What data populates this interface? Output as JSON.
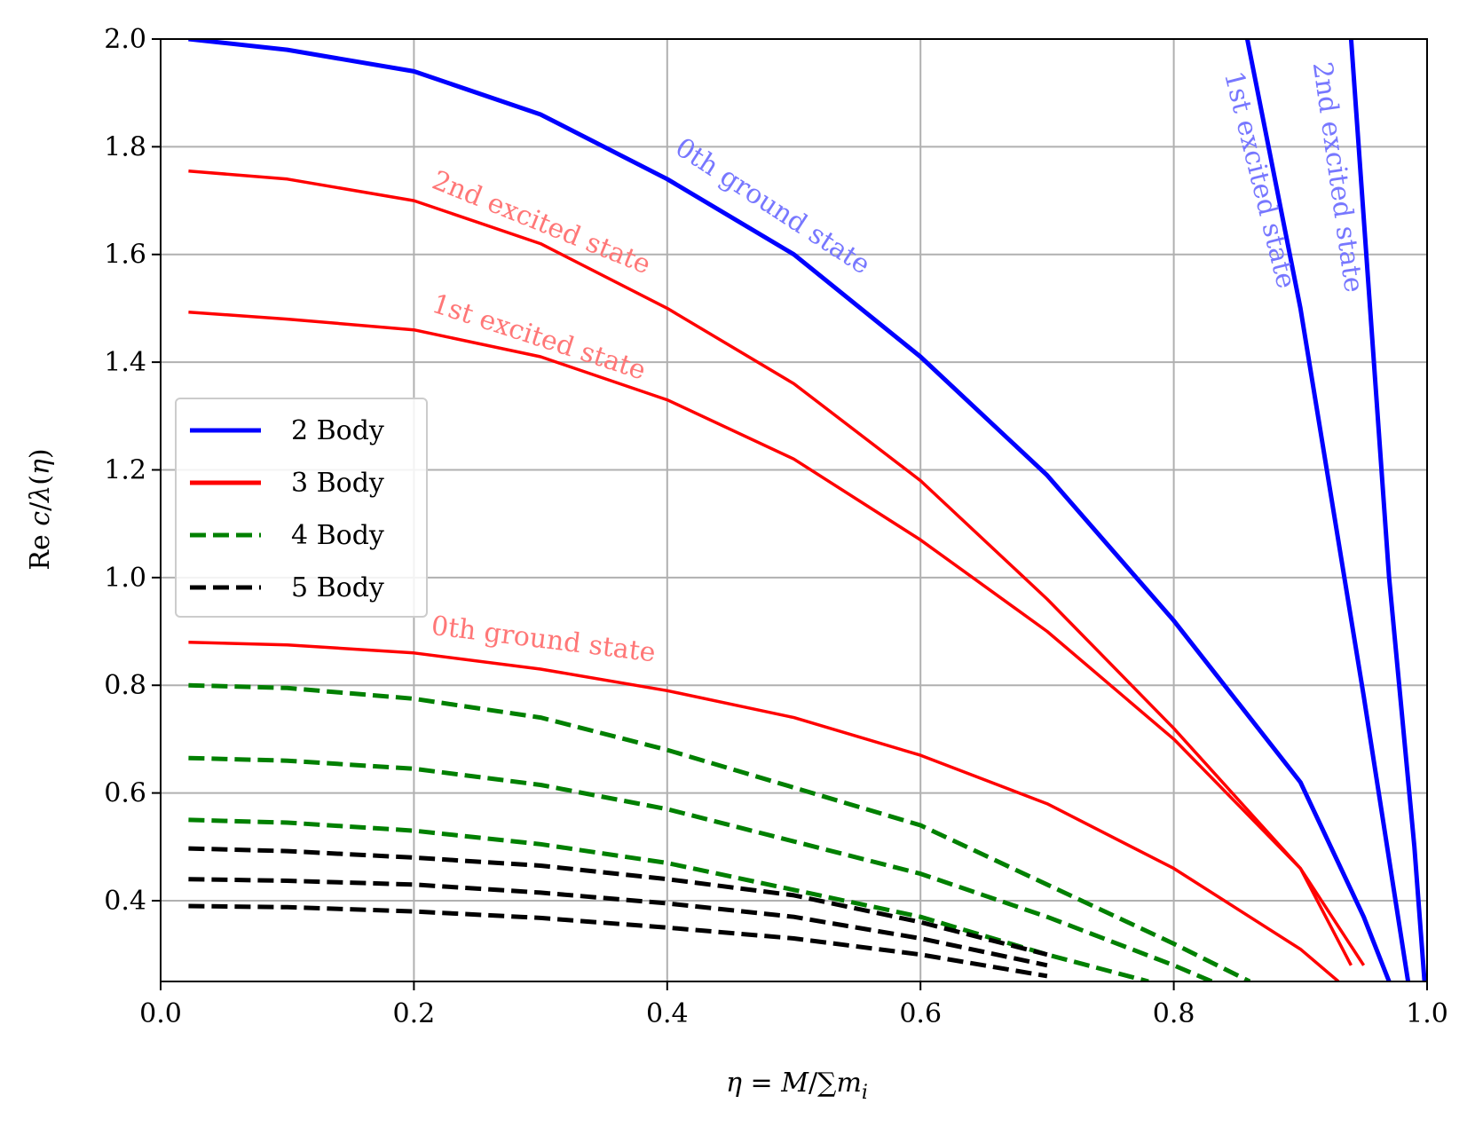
{
  "chart_data": {
    "type": "line",
    "title": "",
    "xlabel": "η = M/∑m_i",
    "ylabel": "Re c/λ(η)",
    "xlim": [
      0.0,
      1.0
    ],
    "ylim": [
      0.25,
      2.0
    ],
    "xticks": [
      "0.0",
      "0.2",
      "0.4",
      "0.6",
      "0.8",
      "1.0"
    ],
    "yticks": [
      "0.4",
      "0.6",
      "0.8",
      "1.0",
      "1.2",
      "1.4",
      "1.6",
      "1.8",
      "2.0"
    ],
    "grid": true,
    "legend_position": "center-left",
    "legend": [
      {
        "label": "2 Body",
        "color": "#0000ff",
        "style": "solid"
      },
      {
        "label": "3 Body",
        "color": "#ff0000",
        "style": "solid"
      },
      {
        "label": "4 Body",
        "color": "#008000",
        "style": "dashed"
      },
      {
        "label": "5 Body",
        "color": "#000000",
        "style": "dashed"
      }
    ],
    "series": [
      {
        "group": "2 Body",
        "color": "#0000ff",
        "style": "solid",
        "width": 5,
        "x": [
          0.022,
          0.1,
          0.2,
          0.3,
          0.4,
          0.5,
          0.6,
          0.7,
          0.8,
          0.9,
          0.95,
          0.97
        ],
        "y": [
          2.0,
          1.98,
          1.94,
          1.86,
          1.74,
          1.6,
          1.41,
          1.19,
          0.92,
          0.62,
          0.37,
          0.25
        ]
      },
      {
        "group": "2 Body",
        "color": "#0000ff",
        "style": "solid",
        "width": 5,
        "x": [
          0.858,
          0.9,
          0.95,
          0.985
        ],
        "y": [
          2.0,
          1.5,
          0.78,
          0.25
        ]
      },
      {
        "group": "2 Body",
        "color": "#0000ff",
        "style": "solid",
        "width": 5,
        "x": [
          0.94,
          0.955,
          0.97,
          0.99,
          0.998
        ],
        "y": [
          2.0,
          1.5,
          1.0,
          0.5,
          0.25
        ]
      },
      {
        "group": "3 Body",
        "color": "#ff0000",
        "style": "solid",
        "width": 3.5,
        "x": [
          0.022,
          0.1,
          0.2,
          0.3,
          0.4,
          0.5,
          0.6,
          0.7,
          0.8,
          0.9,
          0.95
        ],
        "y": [
          1.755,
          1.74,
          1.7,
          1.62,
          1.5,
          1.36,
          1.18,
          0.96,
          0.72,
          0.46,
          0.28
        ]
      },
      {
        "group": "3 Body",
        "color": "#ff0000",
        "style": "solid",
        "width": 3.5,
        "x": [
          0.022,
          0.1,
          0.2,
          0.3,
          0.4,
          0.5,
          0.6,
          0.7,
          0.8,
          0.9,
          0.94
        ],
        "y": [
          1.493,
          1.48,
          1.46,
          1.41,
          1.33,
          1.22,
          1.07,
          0.9,
          0.7,
          0.46,
          0.28
        ]
      },
      {
        "group": "3 Body",
        "color": "#ff0000",
        "style": "solid",
        "width": 3.5,
        "x": [
          0.022,
          0.1,
          0.2,
          0.3,
          0.4,
          0.5,
          0.6,
          0.7,
          0.8,
          0.9,
          0.93
        ],
        "y": [
          0.88,
          0.875,
          0.86,
          0.83,
          0.79,
          0.74,
          0.67,
          0.58,
          0.46,
          0.31,
          0.25
        ]
      },
      {
        "group": "4 Body",
        "color": "#008000",
        "style": "dashed",
        "width": 5,
        "x": [
          0.022,
          0.1,
          0.2,
          0.3,
          0.4,
          0.5,
          0.6,
          0.7,
          0.8,
          0.86
        ],
        "y": [
          0.8,
          0.795,
          0.775,
          0.74,
          0.68,
          0.61,
          0.54,
          0.43,
          0.32,
          0.25
        ]
      },
      {
        "group": "4 Body",
        "color": "#008000",
        "style": "dashed",
        "width": 5,
        "x": [
          0.022,
          0.1,
          0.2,
          0.3,
          0.4,
          0.5,
          0.6,
          0.7,
          0.8,
          0.83
        ],
        "y": [
          0.665,
          0.66,
          0.645,
          0.615,
          0.57,
          0.51,
          0.45,
          0.37,
          0.28,
          0.25
        ]
      },
      {
        "group": "4 Body",
        "color": "#008000",
        "style": "dashed",
        "width": 5,
        "x": [
          0.022,
          0.1,
          0.2,
          0.3,
          0.4,
          0.5,
          0.6,
          0.7,
          0.78
        ],
        "y": [
          0.55,
          0.545,
          0.53,
          0.505,
          0.47,
          0.42,
          0.37,
          0.3,
          0.25
        ]
      },
      {
        "group": "5 Body",
        "color": "#000000",
        "style": "dashed",
        "width": 5,
        "x": [
          0.022,
          0.1,
          0.2,
          0.3,
          0.4,
          0.5,
          0.6,
          0.7
        ],
        "y": [
          0.497,
          0.492,
          0.48,
          0.465,
          0.44,
          0.41,
          0.36,
          0.3
        ]
      },
      {
        "group": "5 Body",
        "color": "#000000",
        "style": "dashed",
        "width": 5,
        "x": [
          0.022,
          0.1,
          0.2,
          0.3,
          0.4,
          0.5,
          0.6,
          0.7
        ],
        "y": [
          0.44,
          0.437,
          0.43,
          0.415,
          0.395,
          0.37,
          0.33,
          0.28
        ]
      },
      {
        "group": "5 Body",
        "color": "#000000",
        "style": "dashed",
        "width": 5,
        "x": [
          0.022,
          0.1,
          0.2,
          0.3,
          0.4,
          0.5,
          0.6,
          0.7
        ],
        "y": [
          0.39,
          0.388,
          0.38,
          0.368,
          0.35,
          0.33,
          0.3,
          0.26
        ]
      }
    ],
    "annotations": [
      {
        "text": "0th ground state",
        "x": 0.405,
        "y": 1.79,
        "angle": 33,
        "color": "#7777ff"
      },
      {
        "text": "2nd excited state",
        "x": 0.213,
        "y": 1.725,
        "angle": 22,
        "color": "#ff7777"
      },
      {
        "text": "1st excited state",
        "x": 0.213,
        "y": 1.495,
        "angle": 18,
        "color": "#ff7777"
      },
      {
        "text": "0th ground state",
        "x": 0.213,
        "y": 0.895,
        "angle": 7,
        "color": "#ff7777"
      },
      {
        "text": "1st excited state",
        "x": 0.84,
        "y": 1.935,
        "angle": 76,
        "color": "#7777ff"
      },
      {
        "text": "2nd excited state",
        "x": 0.91,
        "y": 1.955,
        "angle": 82,
        "color": "#7777ff"
      }
    ]
  }
}
